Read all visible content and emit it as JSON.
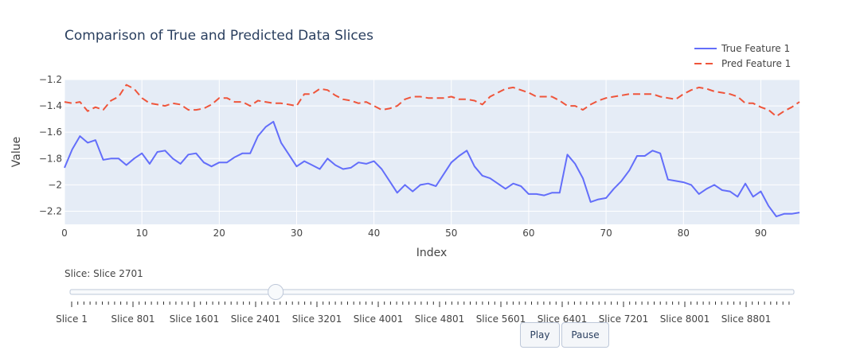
{
  "chart_data": {
    "type": "line",
    "title": "Comparison of True and Predicted Data Slices",
    "xlabel": "Index",
    "ylabel": "Value",
    "xlim": [
      0,
      95
    ],
    "ylim": [
      -2.3,
      -1.2
    ],
    "x_ticks": [
      0,
      10,
      20,
      30,
      40,
      50,
      60,
      70,
      80,
      90
    ],
    "y_ticks": [
      -2.2,
      -2,
      -1.8,
      -1.6,
      -1.4,
      -1.2
    ],
    "y_tick_labels": [
      "−2.2",
      "−2",
      "−1.8",
      "−1.6",
      "−1.4",
      "−1.2"
    ],
    "grid": true,
    "legend_position": "top-right",
    "series": [
      {
        "name": "True Feature 1",
        "color": "#636efa",
        "dash": "solid",
        "values": [
          -1.87,
          -1.73,
          -1.63,
          -1.68,
          -1.66,
          -1.81,
          -1.8,
          -1.8,
          -1.85,
          -1.8,
          -1.76,
          -1.84,
          -1.75,
          -1.74,
          -1.8,
          -1.84,
          -1.77,
          -1.76,
          -1.83,
          -1.86,
          -1.83,
          -1.83,
          -1.79,
          -1.76,
          -1.76,
          -1.63,
          -1.56,
          -1.52,
          -1.68,
          -1.77,
          -1.86,
          -1.82,
          -1.85,
          -1.88,
          -1.8,
          -1.85,
          -1.88,
          -1.87,
          -1.83,
          -1.84,
          -1.82,
          -1.88,
          -1.97,
          -2.06,
          -2.0,
          -2.05,
          -2.0,
          -1.99,
          -2.01,
          -1.92,
          -1.83,
          -1.78,
          -1.74,
          -1.86,
          -1.93,
          -1.95,
          -1.99,
          -2.03,
          -1.99,
          -2.01,
          -2.07,
          -2.07,
          -2.08,
          -2.06,
          -2.06,
          -1.77,
          -1.84,
          -1.95,
          -2.13,
          -2.11,
          -2.1,
          -2.03,
          -1.97,
          -1.89,
          -1.78,
          -1.78,
          -1.74,
          -1.76,
          -1.96,
          -1.97,
          -1.98,
          -2.0,
          -2.07,
          -2.03,
          -2.0,
          -2.04,
          -2.05,
          -2.09,
          -1.99,
          -2.09,
          -2.05,
          -2.16,
          -2.24,
          -2.22,
          -2.22,
          -2.21
        ]
      },
      {
        "name": "Pred Feature 1",
        "color": "#ef553b",
        "dash": "dash",
        "values": [
          -1.37,
          -1.38,
          -1.37,
          -1.44,
          -1.41,
          -1.43,
          -1.36,
          -1.33,
          -1.24,
          -1.27,
          -1.34,
          -1.38,
          -1.39,
          -1.4,
          -1.38,
          -1.39,
          -1.43,
          -1.43,
          -1.42,
          -1.39,
          -1.34,
          -1.34,
          -1.37,
          -1.37,
          -1.4,
          -1.36,
          -1.37,
          -1.38,
          -1.38,
          -1.39,
          -1.4,
          -1.31,
          -1.31,
          -1.27,
          -1.28,
          -1.32,
          -1.35,
          -1.36,
          -1.38,
          -1.37,
          -1.4,
          -1.43,
          -1.42,
          -1.4,
          -1.35,
          -1.33,
          -1.33,
          -1.34,
          -1.34,
          -1.34,
          -1.33,
          -1.35,
          -1.35,
          -1.36,
          -1.39,
          -1.33,
          -1.3,
          -1.27,
          -1.26,
          -1.28,
          -1.3,
          -1.33,
          -1.33,
          -1.33,
          -1.36,
          -1.4,
          -1.4,
          -1.43,
          -1.39,
          -1.36,
          -1.34,
          -1.33,
          -1.32,
          -1.31,
          -1.31,
          -1.31,
          -1.31,
          -1.33,
          -1.34,
          -1.35,
          -1.31,
          -1.28,
          -1.26,
          -1.27,
          -1.29,
          -1.3,
          -1.31,
          -1.33,
          -1.38,
          -1.38,
          -1.41,
          -1.43,
          -1.48,
          -1.44,
          -1.41,
          -1.37
        ]
      }
    ]
  },
  "slider": {
    "current_label": "Slice: Slice 2701",
    "current_fraction": 0.284,
    "labels": [
      "Slice 1",
      "Slice 801",
      "Slice 1601",
      "Slice 2401",
      "Slice 3201",
      "Slice 4001",
      "Slice 4801",
      "Slice 5601",
      "Slice 6401",
      "Slice 7201",
      "Slice 8001",
      "Slice 8801"
    ]
  },
  "buttons": {
    "play": "Play",
    "pause": "Pause"
  }
}
